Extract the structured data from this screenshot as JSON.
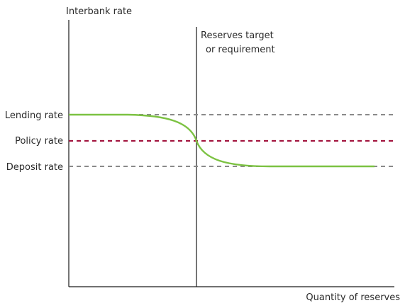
{
  "diagram": {
    "y_axis_label": "Interbank rate",
    "x_axis_label": "Quantity of reserves",
    "vertical_line_label_1": "Reserves target",
    "vertical_line_label_2": "or requirement",
    "rate_levels": [
      {
        "label": "Lending rate",
        "color": "#8a8a8a"
      },
      {
        "label": "Policy rate",
        "color": "#a3163f"
      },
      {
        "label": "Deposit rate",
        "color": "#8a8a8a"
      }
    ],
    "curve_color": "#7cc242",
    "axis_color": "#1a1a1a"
  }
}
